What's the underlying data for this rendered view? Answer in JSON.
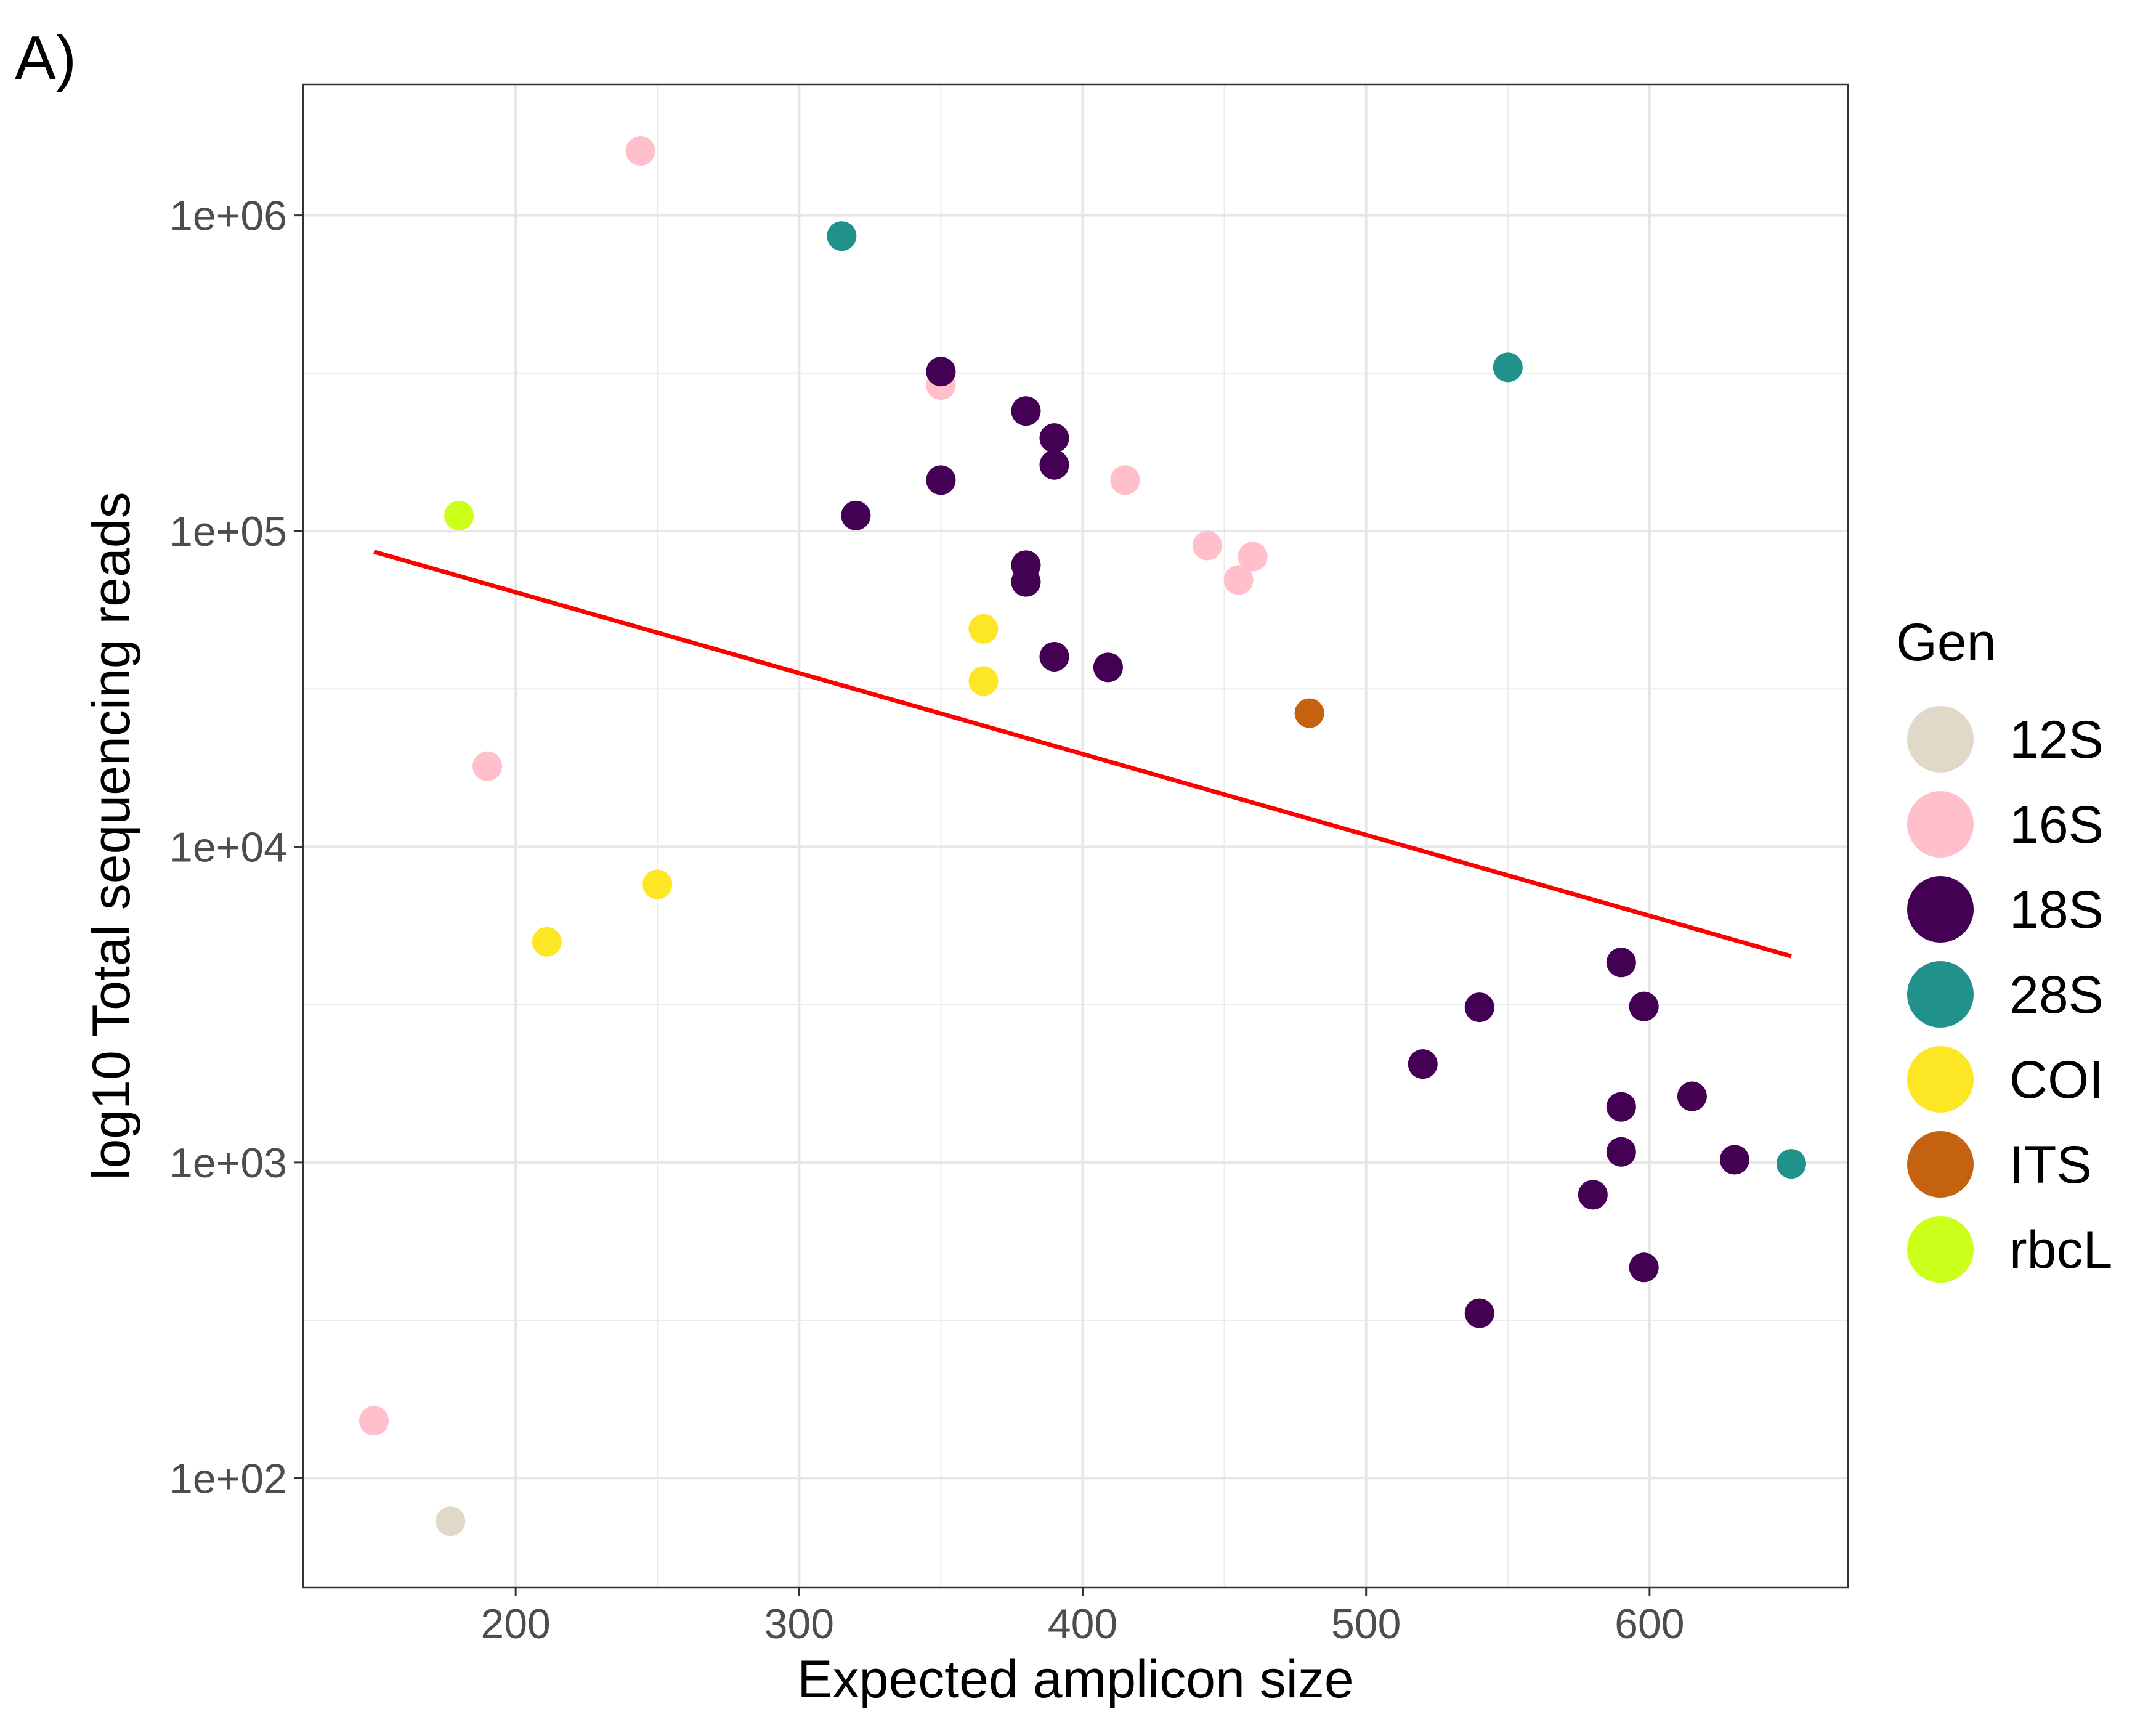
{
  "panel_label": "A)",
  "chart_data": {
    "type": "scatter",
    "xlabel": "Expected amplicon size",
    "ylabel": "log10 Total sequencing reads",
    "y_scale": "log10",
    "xlim": [
      125,
      670
    ],
    "ylim": [
      45,
      2600000
    ],
    "x_ticks": [
      200,
      300,
      400,
      500,
      600
    ],
    "x_tick_labels": [
      "200",
      "300",
      "400",
      "500",
      "600"
    ],
    "y_ticks": [
      100,
      1000,
      10000,
      100000,
      1000000
    ],
    "y_tick_labels": [
      "1e+02",
      "1e+03",
      "1e+04",
      "1e+05",
      "1e+06"
    ],
    "grid": true,
    "legend": {
      "title": "Gen",
      "position": "right",
      "entries": [
        {
          "label": "12S",
          "color": "#E1D9C7"
        },
        {
          "label": "16S",
          "color": "#FFC0CB"
        },
        {
          "label": "18S",
          "color": "#440154"
        },
        {
          "label": "28S",
          "color": "#21918C"
        },
        {
          "label": "COI",
          "color": "#FDE725"
        },
        {
          "label": "ITS",
          "color": "#C46210"
        },
        {
          "label": "rbcL",
          "color": "#CCFF1A"
        }
      ]
    },
    "series": [
      {
        "name": "12S",
        "color": "#E1D9C7",
        "points": [
          [
            177,
            73
          ]
        ]
      },
      {
        "name": "16S",
        "color": "#FFC0CB",
        "points": [
          [
            150,
            152
          ],
          [
            190,
            18000
          ],
          [
            244,
            1600000
          ],
          [
            350,
            290000
          ],
          [
            415,
            145000
          ],
          [
            444,
            90000
          ],
          [
            455,
            70000
          ],
          [
            460,
            83000
          ]
        ]
      },
      {
        "name": "18S",
        "color": "#440154",
        "points": [
          [
            320,
            112000
          ],
          [
            350,
            145000
          ],
          [
            350,
            320000
          ],
          [
            380,
            240000
          ],
          [
            380,
            78000
          ],
          [
            380,
            69000
          ],
          [
            390,
            197000
          ],
          [
            390,
            162000
          ],
          [
            390,
            40000
          ],
          [
            409,
            37000
          ],
          [
            520,
            2050
          ],
          [
            540,
            3100
          ],
          [
            540,
            333
          ],
          [
            580,
            790
          ],
          [
            590,
            4300
          ],
          [
            590,
            1500
          ],
          [
            590,
            1080
          ],
          [
            598,
            3120
          ],
          [
            598,
            465
          ],
          [
            615,
            1620
          ],
          [
            630,
            1020
          ]
        ]
      },
      {
        "name": "28S",
        "color": "#21918C",
        "points": [
          [
            315,
            860000
          ],
          [
            550,
            330000
          ],
          [
            650,
            990
          ]
        ]
      },
      {
        "name": "COI",
        "color": "#FDE725",
        "points": [
          [
            211,
            5000
          ],
          [
            250,
            7600
          ],
          [
            365,
            49000
          ],
          [
            365,
            33500
          ]
        ]
      },
      {
        "name": "ITS",
        "color": "#C46210",
        "points": [
          [
            480,
            26500
          ]
        ]
      },
      {
        "name": "rbcL",
        "color": "#CCFF1A",
        "points": [
          [
            180,
            112000
          ]
        ]
      }
    ],
    "trend_line": {
      "color": "#FF0000",
      "points": [
        [
          150,
          86000
        ],
        [
          650,
          4500
        ]
      ]
    }
  }
}
